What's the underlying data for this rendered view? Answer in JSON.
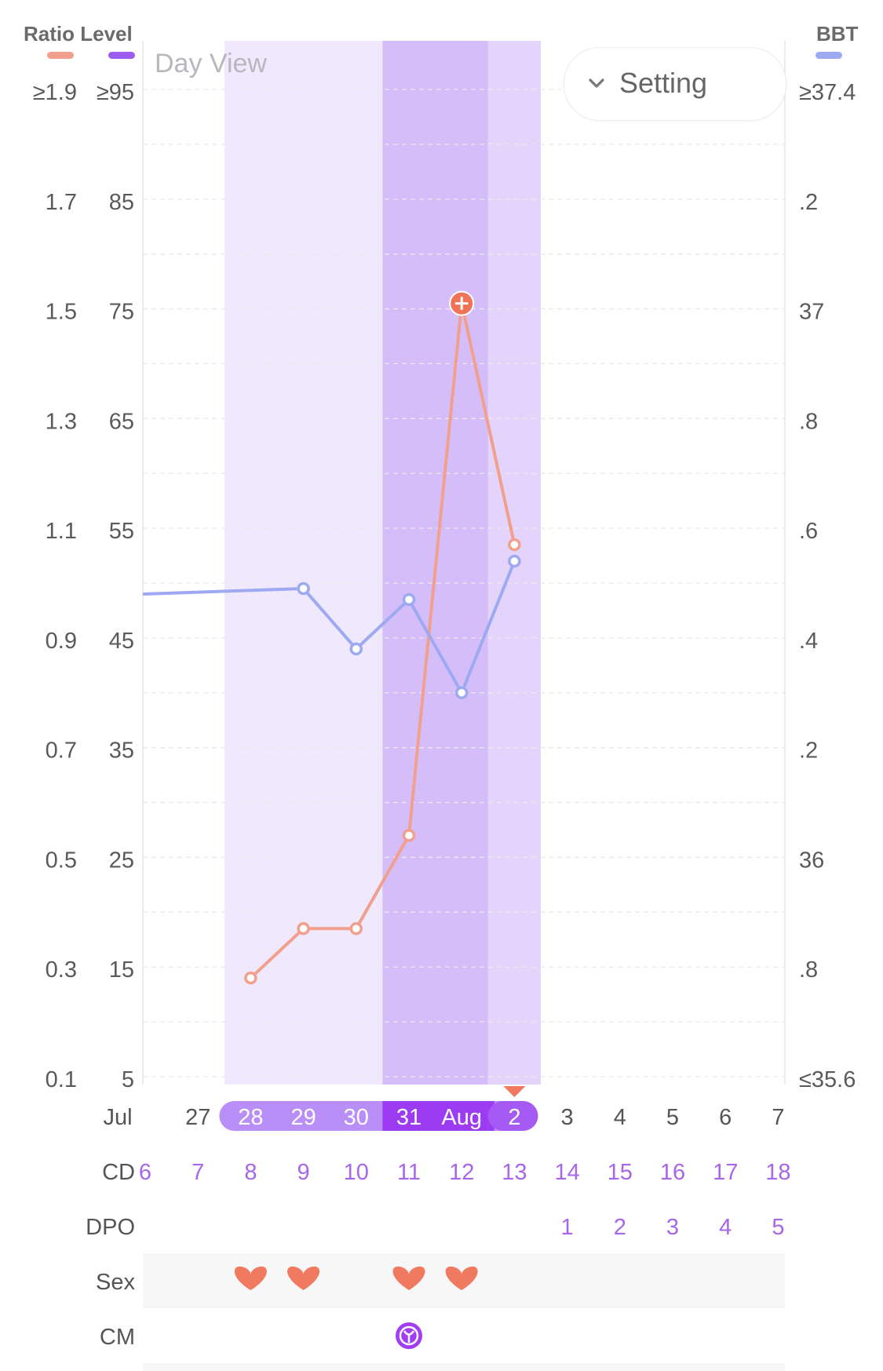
{
  "header": {
    "left_title": "Ratio Level",
    "right_title": "BBT",
    "view_label": "Day View",
    "setting_label": "Setting",
    "colors": {
      "ratio": "#f0a08c",
      "level": "#9b5cf0",
      "bbt": "#9daaf2"
    }
  },
  "chart_data": {
    "type": "line",
    "x_month_labels": [
      "Jul",
      "Aug"
    ],
    "x": [
      "27",
      "28",
      "29",
      "30",
      "31",
      "Aug",
      "2",
      "3",
      "4",
      "5",
      "6",
      "7"
    ],
    "x_display": [
      "Jul",
      "27",
      "28",
      "29",
      "30",
      "31",
      "Aug",
      "2",
      "3",
      "4",
      "5",
      "6",
      "7"
    ],
    "cycle_day": [
      "6",
      "7",
      "8",
      "9",
      "10",
      "11",
      "12",
      "13",
      "14",
      "15",
      "16",
      "17",
      "18"
    ],
    "dpo": [
      "",
      "",
      "",
      "",
      "",
      "",
      "",
      "",
      "1",
      "2",
      "3",
      "4",
      "5"
    ],
    "row_labels": {
      "cd": "CD",
      "dpo": "DPO",
      "sex": "Sex",
      "cm": "CM"
    },
    "y_left_ratio_ticks": [
      "≥1.9",
      "1.7",
      "1.5",
      "1.3",
      "1.1",
      "0.9",
      "0.7",
      "0.5",
      "0.3",
      "0.1"
    ],
    "y_left_level_ticks": [
      "≥95",
      "85",
      "75",
      "65",
      "55",
      "45",
      "35",
      "25",
      "15",
      "5"
    ],
    "y_right_bbt_ticks": [
      "≥37.4",
      ".2",
      "37",
      ".8",
      ".6",
      ".4",
      ".2",
      "36",
      ".8",
      "≤35.6"
    ],
    "ylim_ratio": [
      0.1,
      1.9
    ],
    "ylim_bbt": [
      35.6,
      37.4
    ],
    "series": [
      {
        "name": "Ratio",
        "color": "#f0a08c",
        "axis": "ratio",
        "points": [
          {
            "x": "28",
            "y": 0.28
          },
          {
            "x": "29",
            "y": 0.37
          },
          {
            "x": "30",
            "y": 0.37
          },
          {
            "x": "31",
            "y": 0.54
          },
          {
            "x": "Aug",
            "y": 1.51,
            "peak": true
          },
          {
            "x": "2",
            "y": 1.07
          }
        ]
      },
      {
        "name": "BBT",
        "color": "#9daaf2",
        "axis": "bbt",
        "points": [
          {
            "x": "26",
            "y": 36.48
          },
          {
            "x": "29",
            "y": 36.49
          },
          {
            "x": "30",
            "y": 36.38
          },
          {
            "x": "31",
            "y": 36.47
          },
          {
            "x": "Aug",
            "y": 36.3
          },
          {
            "x": "2",
            "y": 36.54
          }
        ]
      }
    ],
    "fertile_window": [
      "28",
      "2"
    ],
    "peak_window": [
      "31",
      "Aug"
    ],
    "highlighted_dates": [
      "28",
      "29",
      "30",
      "31",
      "Aug",
      "2"
    ],
    "ovulation_marker": "2",
    "sex_days": [
      "28",
      "29",
      "31",
      "Aug"
    ],
    "cm_days": [
      "31"
    ]
  }
}
